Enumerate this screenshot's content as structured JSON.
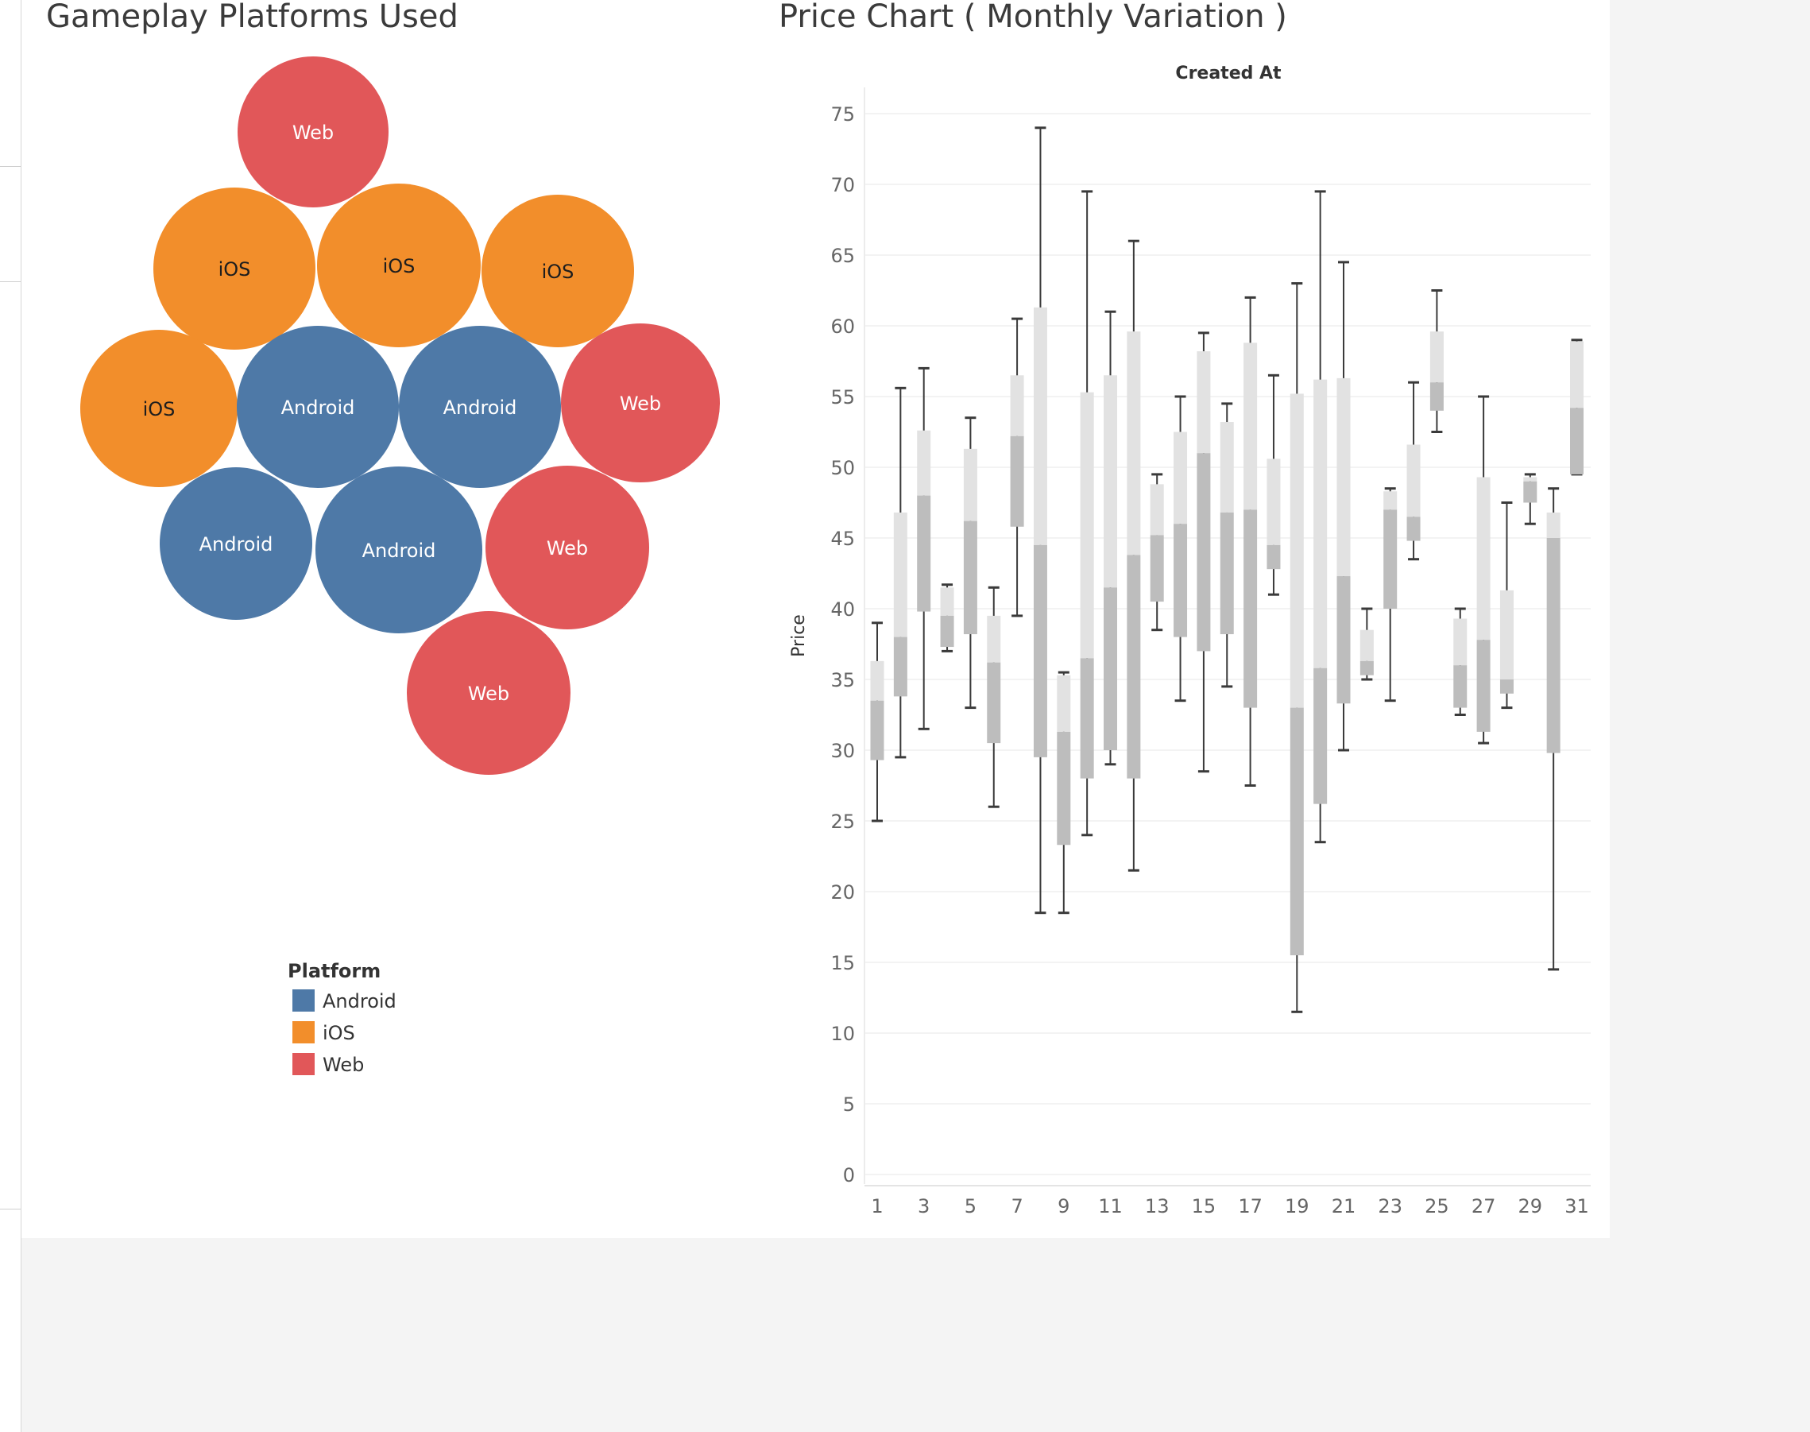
{
  "panels": {
    "bubble": {
      "title": "Gameplay Platforms Used",
      "legend_title": "Platform",
      "legend": [
        {
          "label": "Android",
          "color": "#4e79a7"
        },
        {
          "label": "iOS",
          "color": "#f28e2b"
        },
        {
          "label": "Web",
          "color": "#e15759"
        }
      ]
    },
    "box": {
      "title": "Price Chart ( Monthly Variation )",
      "x_header": "Created At",
      "y_label": "Price"
    }
  },
  "chart_data": [
    {
      "type": "bubble",
      "title": "Gameplay Platforms Used",
      "legend_title": "Platform",
      "bubbles": [
        {
          "label": "Web",
          "category": "Web",
          "color": "#e15759"
        },
        {
          "label": "iOS",
          "category": "iOS",
          "color": "#f28e2b"
        },
        {
          "label": "iOS",
          "category": "iOS",
          "color": "#f28e2b"
        },
        {
          "label": "iOS",
          "category": "iOS",
          "color": "#f28e2b"
        },
        {
          "label": "iOS",
          "category": "iOS",
          "color": "#f28e2b"
        },
        {
          "label": "Android",
          "category": "Android",
          "color": "#4e79a7"
        },
        {
          "label": "Android",
          "category": "Android",
          "color": "#4e79a7"
        },
        {
          "label": "Web",
          "category": "Web",
          "color": "#e15759"
        },
        {
          "label": "Android",
          "category": "Android",
          "color": "#4e79a7"
        },
        {
          "label": "Android",
          "category": "Android",
          "color": "#4e79a7"
        },
        {
          "label": "Web",
          "category": "Web",
          "color": "#e15759"
        },
        {
          "label": "Web",
          "category": "Web",
          "color": "#e15759"
        }
      ]
    },
    {
      "type": "boxplot",
      "title": "Price Chart ( Monthly Variation )",
      "xlabel": "Created At",
      "ylabel": "Price",
      "ylim": [
        0,
        77
      ],
      "yticks": [
        0,
        5,
        10,
        15,
        20,
        25,
        30,
        35,
        40,
        45,
        50,
        55,
        60,
        65,
        70,
        75
      ],
      "xtick_labels": [
        "1",
        "3",
        "5",
        "7",
        "9",
        "11",
        "13",
        "15",
        "17",
        "19",
        "21",
        "23",
        "25",
        "27",
        "29",
        "31"
      ],
      "grid": true,
      "box_color_lower": "#bdbdbd",
      "box_color_upper": "#e2e2e2",
      "whisker_color": "#3a3a3a",
      "days": [
        {
          "day": 1,
          "min": 25,
          "q1": 29.3,
          "median": 33.5,
          "q3": 36.3,
          "max": 39
        },
        {
          "day": 2,
          "min": 29.5,
          "q1": 33.8,
          "median": 38,
          "q3": 46.8,
          "max": 55.6
        },
        {
          "day": 3,
          "min": 31.5,
          "q1": 39.8,
          "median": 48,
          "q3": 52.6,
          "max": 57
        },
        {
          "day": 4,
          "min": 37,
          "q1": 37.3,
          "median": 39.5,
          "q3": 41.5,
          "max": 41.7
        },
        {
          "day": 5,
          "min": 33,
          "q1": 38.2,
          "median": 46.2,
          "q3": 51.3,
          "max": 53.5
        },
        {
          "day": 6,
          "min": 26,
          "q1": 30.5,
          "median": 36.2,
          "q3": 39.5,
          "max": 41.5
        },
        {
          "day": 7,
          "min": 39.5,
          "q1": 45.8,
          "median": 52.2,
          "q3": 56.5,
          "max": 60.5
        },
        {
          "day": 8,
          "min": 18.5,
          "q1": 29.5,
          "median": 44.5,
          "q3": 61.3,
          "max": 74
        },
        {
          "day": 9,
          "min": 18.5,
          "q1": 23.3,
          "median": 31.3,
          "q3": 35.3,
          "max": 35.5
        },
        {
          "day": 10,
          "min": 24,
          "q1": 28,
          "median": 36.5,
          "q3": 55.3,
          "max": 69.5
        },
        {
          "day": 11,
          "min": 29,
          "q1": 30,
          "median": 41.5,
          "q3": 56.5,
          "max": 61
        },
        {
          "day": 12,
          "min": 21.5,
          "q1": 28,
          "median": 43.8,
          "q3": 59.6,
          "max": 66
        },
        {
          "day": 13,
          "min": 38.5,
          "q1": 40.5,
          "median": 45.2,
          "q3": 48.8,
          "max": 49.5
        },
        {
          "day": 14,
          "min": 33.5,
          "q1": 38,
          "median": 46,
          "q3": 52.5,
          "max": 55
        },
        {
          "day": 15,
          "min": 28.5,
          "q1": 37,
          "median": 51,
          "q3": 58.2,
          "max": 59.5
        },
        {
          "day": 16,
          "min": 34.5,
          "q1": 38.2,
          "median": 46.8,
          "q3": 53.2,
          "max": 54.5
        },
        {
          "day": 17,
          "min": 27.5,
          "q1": 33,
          "median": 47,
          "q3": 58.8,
          "max": 62
        },
        {
          "day": 18,
          "min": 41,
          "q1": 42.8,
          "median": 44.5,
          "q3": 50.6,
          "max": 56.5
        },
        {
          "day": 19,
          "min": 11.5,
          "q1": 15.5,
          "median": 33,
          "q3": 55.2,
          "max": 63
        },
        {
          "day": 20,
          "min": 23.5,
          "q1": 26.2,
          "median": 35.8,
          "q3": 56.2,
          "max": 69.5
        },
        {
          "day": 21,
          "min": 30,
          "q1": 33.3,
          "median": 42.3,
          "q3": 56.3,
          "max": 64.5
        },
        {
          "day": 22,
          "min": 35,
          "q1": 35.3,
          "median": 36.3,
          "q3": 38.5,
          "max": 40
        },
        {
          "day": 23,
          "min": 33.5,
          "q1": 40,
          "median": 47,
          "q3": 48.3,
          "max": 48.5
        },
        {
          "day": 24,
          "min": 43.5,
          "q1": 44.8,
          "median": 46.5,
          "q3": 51.6,
          "max": 56
        },
        {
          "day": 25,
          "min": 52.5,
          "q1": 54,
          "median": 56,
          "q3": 59.6,
          "max": 62.5
        },
        {
          "day": 26,
          "min": 32.5,
          "q1": 33,
          "median": 36,
          "q3": 39.3,
          "max": 40
        },
        {
          "day": 27,
          "min": 30.5,
          "q1": 31.3,
          "median": 37.8,
          "q3": 49.3,
          "max": 55
        },
        {
          "day": 28,
          "min": 33,
          "q1": 34,
          "median": 35,
          "q3": 41.3,
          "max": 47.5
        },
        {
          "day": 29,
          "min": 46,
          "q1": 47.5,
          "median": 49,
          "q3": 49.3,
          "max": 49.5
        },
        {
          "day": 30,
          "min": 14.5,
          "q1": 29.8,
          "median": 45,
          "q3": 46.8,
          "max": 48.5
        },
        {
          "day": 31,
          "min": 49.5,
          "q1": 49.5,
          "median": 54.2,
          "q3": 58.9,
          "max": 59
        }
      ]
    }
  ]
}
